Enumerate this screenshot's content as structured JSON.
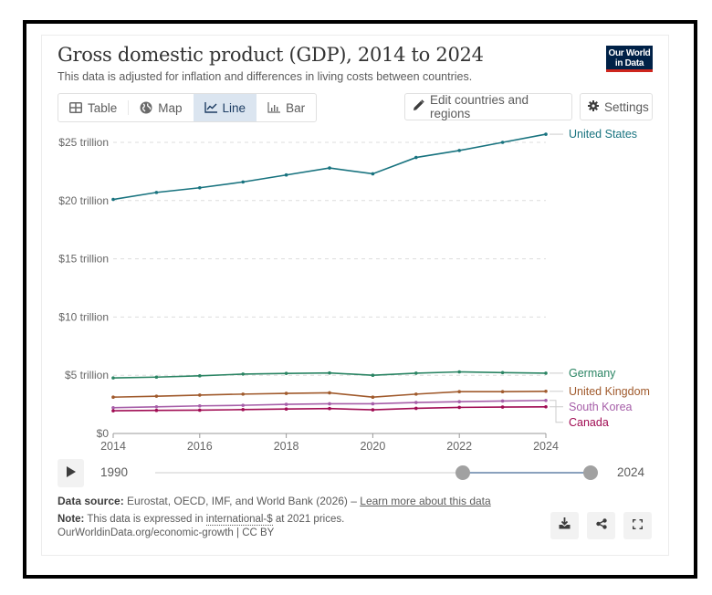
{
  "header": {
    "title": "Gross domestic product (GDP), 2014 to 2024",
    "subtitle": "This data is adjusted for inflation and differences in living costs between countries.",
    "logo_line1": "Our World",
    "logo_line2": "in Data"
  },
  "tabs": [
    {
      "label": "Table",
      "icon": "table-icon",
      "active": false
    },
    {
      "label": "Map",
      "icon": "globe-icon",
      "active": false
    },
    {
      "label": "Line",
      "icon": "line-chart-icon",
      "active": true
    },
    {
      "label": "Bar",
      "icon": "bar-chart-icon",
      "active": false
    }
  ],
  "actions": {
    "edit_label": "Edit countries and regions",
    "settings_label": "Settings"
  },
  "timeline": {
    "start_label": "1990",
    "end_label": "2024",
    "min_year": 1990,
    "max_year": 2024,
    "selected_start": 2014,
    "selected_end": 2024
  },
  "footer": {
    "source_label": "Data source:",
    "source_text": " Eurostat, OECD, IMF, and World Bank (2026) – ",
    "source_link": "Learn more about this data",
    "note_label": "Note:",
    "note_pre": " This data is expressed in ",
    "note_link": "international-$",
    "note_post": " at 2021 prices.",
    "url": "OurWorldinData.org/economic-growth | CC BY"
  },
  "icons": {
    "download": "download-icon",
    "share": "share-icon",
    "fullscreen": "fullscreen-icon"
  },
  "chart_data": {
    "type": "line",
    "title": "Gross domestic product (GDP), 2014 to 2024",
    "xlabel": "",
    "ylabel": "",
    "x": [
      2014,
      2015,
      2016,
      2017,
      2018,
      2019,
      2020,
      2021,
      2022,
      2023,
      2024
    ],
    "xticks": [
      2014,
      2016,
      2018,
      2020,
      2022,
      2024
    ],
    "xtick_labels": [
      "2014",
      "2016",
      "2018",
      "2020",
      "2022",
      "2024"
    ],
    "yticks": [
      0,
      5,
      10,
      15,
      20,
      25
    ],
    "ytick_labels": [
      "$0",
      "$5 trillion",
      "$10 trillion",
      "$15 trillion",
      "$20 trillion",
      "$25 trillion"
    ],
    "ylim": [
      0,
      25
    ],
    "xlim": [
      2014,
      2024
    ],
    "grid": true,
    "legend": "right (inline labels)",
    "series": [
      {
        "name": "United States",
        "color": "#18737f",
        "values": [
          20.1,
          20.7,
          21.1,
          21.6,
          22.2,
          22.8,
          22.3,
          23.7,
          24.3,
          25.0,
          25.7
        ]
      },
      {
        "name": "Germany",
        "color": "#2a8463",
        "values": [
          4.77,
          4.84,
          4.95,
          5.1,
          5.16,
          5.2,
          5.0,
          5.18,
          5.29,
          5.23,
          5.18
        ]
      },
      {
        "name": "United Kingdom",
        "color": "#a05a2c",
        "values": [
          3.12,
          3.2,
          3.3,
          3.38,
          3.44,
          3.49,
          3.12,
          3.38,
          3.59,
          3.59,
          3.62
        ]
      },
      {
        "name": "South Korea",
        "color": "#a65ea8",
        "values": [
          2.21,
          2.29,
          2.37,
          2.42,
          2.5,
          2.55,
          2.55,
          2.66,
          2.73,
          2.79,
          2.84
        ]
      },
      {
        "name": "Canada",
        "color": "#a00c53",
        "values": [
          1.95,
          1.98,
          2.0,
          2.05,
          2.1,
          2.14,
          2.03,
          2.16,
          2.24,
          2.27,
          2.29
        ]
      }
    ]
  }
}
